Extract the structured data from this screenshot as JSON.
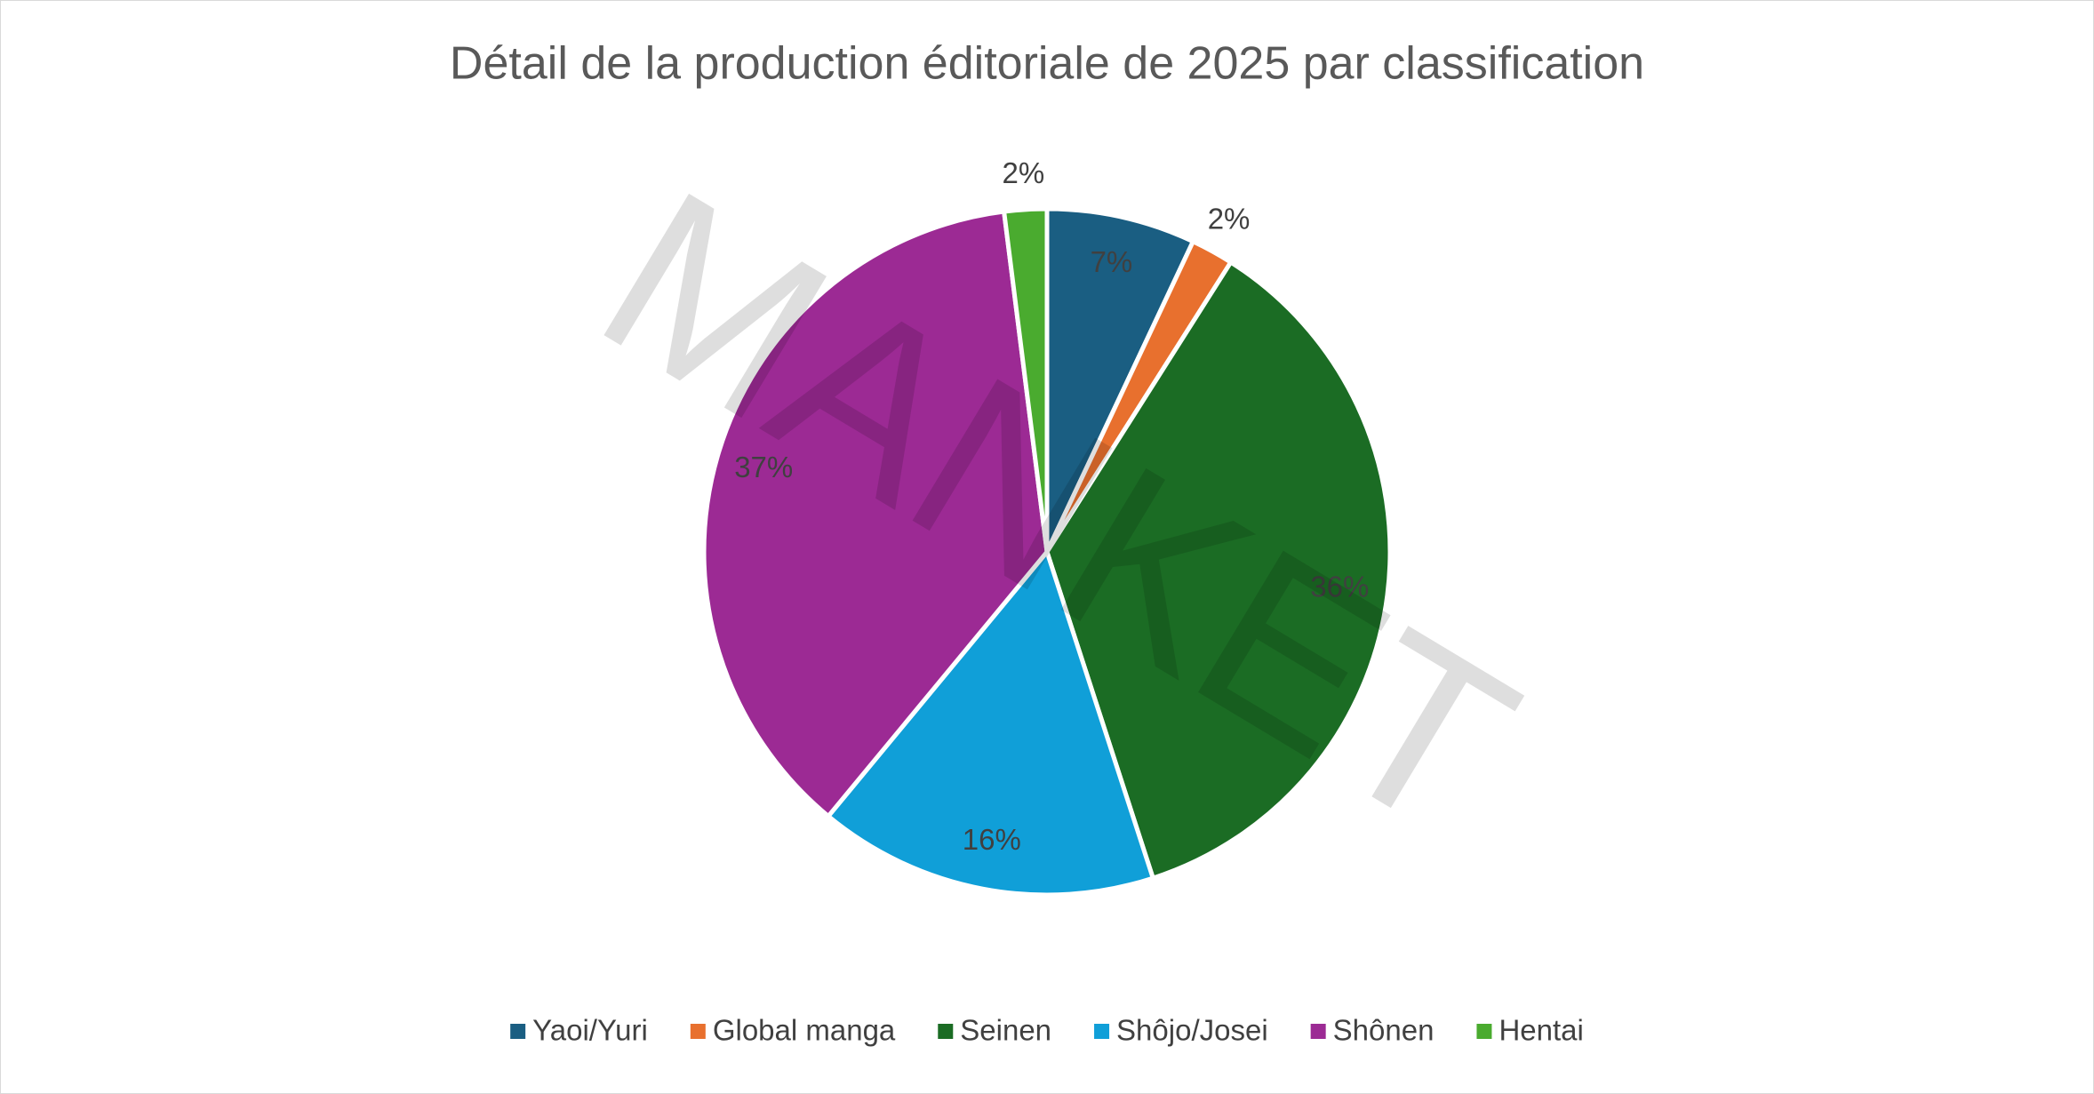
{
  "chart_data": {
    "type": "pie",
    "title": "Détail de la production éditoriale de 2025 par classification",
    "watermark": "MANKET",
    "categories": [
      "Yaoi/Yuri",
      "Global manga",
      "Seinen",
      "Shôjo/Josei",
      "Shônen",
      "Hentai"
    ],
    "values": [
      7,
      2,
      36,
      16,
      37,
      2
    ],
    "value_labels": [
      "7%",
      "2%",
      "36%",
      "16%",
      "37%",
      "2%"
    ],
    "colors": [
      "#1a5e82",
      "#e8702e",
      "#1b6c24",
      "#109fd8",
      "#9c2a94",
      "#4aab2f"
    ],
    "legend": "bottom"
  }
}
